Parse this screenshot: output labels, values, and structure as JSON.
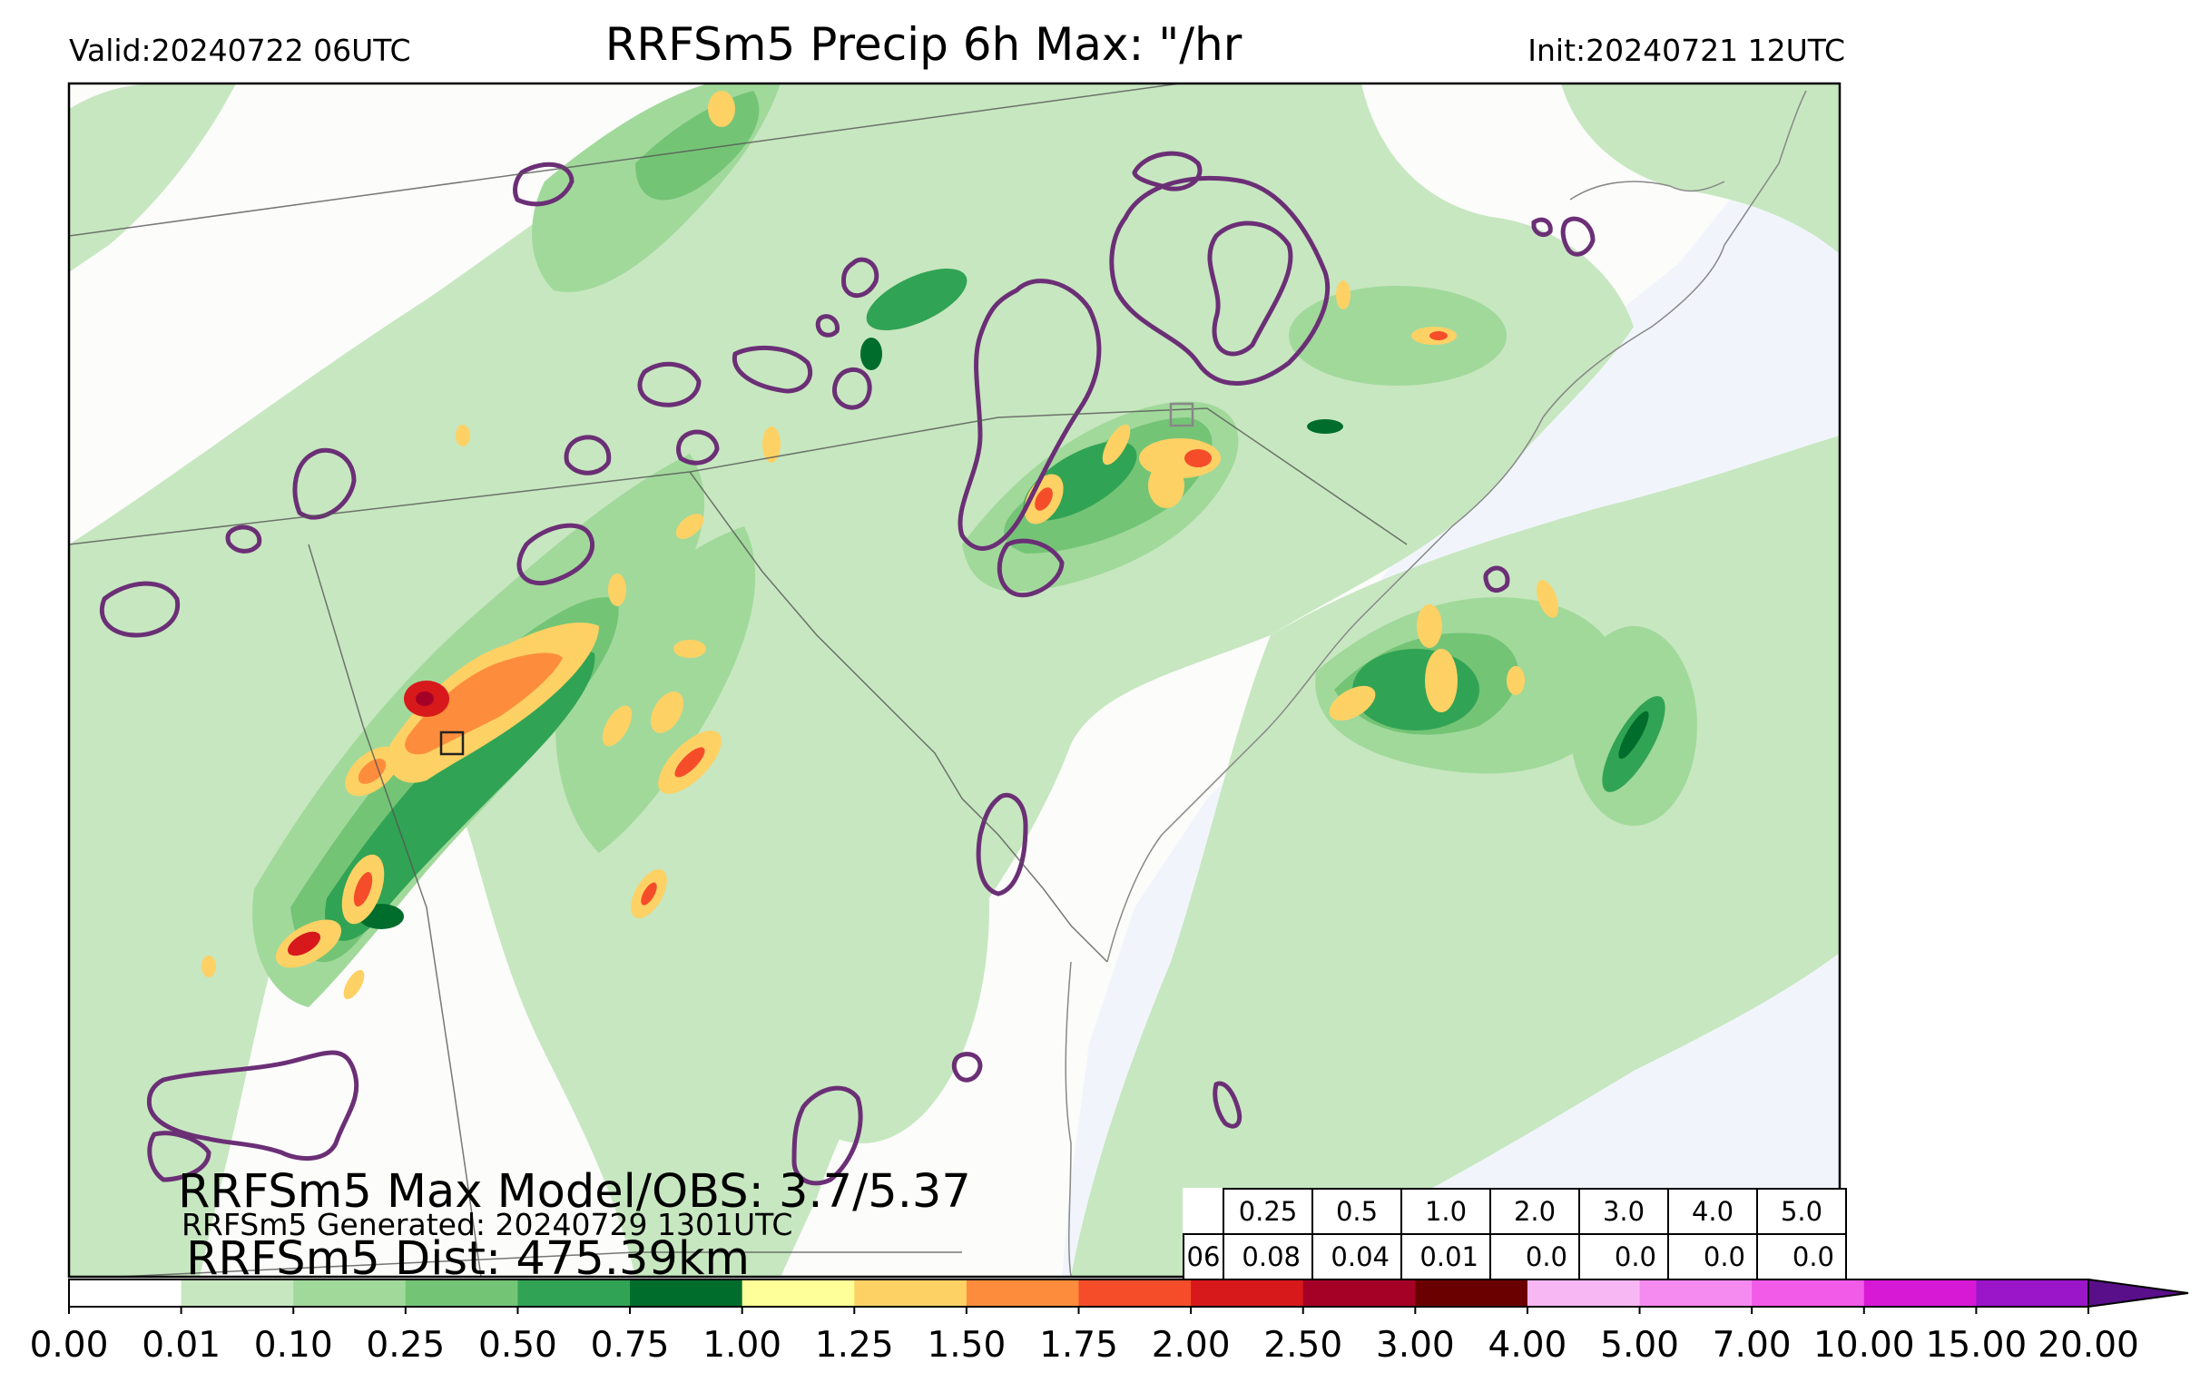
{
  "header": {
    "valid": "Valid:20240722 06UTC",
    "title": "RRFSm5 Precip 6h Max: \"/hr",
    "init": "Init:20240721 12UTC"
  },
  "overlay": {
    "max_obs": "RRFSm5 Max Model/OBS: 3.7/5.37",
    "generated": "RRFSm5 Generated: 20240729 1301UTC",
    "distance": "RRFSm5 Dist: 475.39km"
  },
  "stats_table": {
    "hour": "06",
    "thresholds": [
      "0.25",
      "0.5",
      "1.0",
      "2.0",
      "3.0",
      "4.0",
      "5.0"
    ],
    "values": [
      "0.08",
      "0.04",
      "0.01",
      "0.0",
      "0.0",
      "0.0",
      "0.0"
    ]
  },
  "colorbar": {
    "ticks": [
      "0.00",
      "0.01",
      "0.10",
      "0.25",
      "0.50",
      "0.75",
      "1.00",
      "1.25",
      "1.50",
      "1.75",
      "2.00",
      "2.50",
      "3.00",
      "4.00",
      "5.00",
      "7.00",
      "10.00",
      "15.00",
      "20.00"
    ],
    "colors": [
      "#ffffff",
      "#c7e7c0",
      "#a1d99b",
      "#74c476",
      "#31a354",
      "#006d2c",
      "#ffff99",
      "#fed165",
      "#fd8d3c",
      "#f54d2a",
      "#d7191c",
      "#a50026",
      "#6b0000",
      "#f7b7f3",
      "#f58bf1",
      "#f25ae8",
      "#d719d6",
      "#9b16c8"
    ],
    "extend_color": "#5a0f8a"
  },
  "map_colors": {
    "land": "#fcfcfb",
    "ocean": "#f1f5fb",
    "contour": "#6b2f76"
  }
}
